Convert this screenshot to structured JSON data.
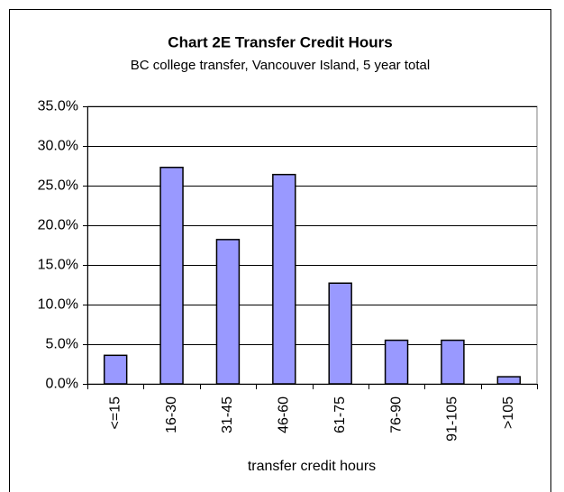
{
  "chart_data": {
    "type": "bar",
    "title": "Chart 2E  Transfer Credit Hours",
    "subtitle": "BC college transfer, Vancouver Island, 5 year total",
    "x_label": "transfer credit hours",
    "categories": [
      "<=15",
      "16-30",
      "31-45",
      "46-60",
      "61-75",
      "76-90",
      "91-105",
      ">105"
    ],
    "values": [
      3.6,
      27.3,
      18.2,
      26.4,
      12.7,
      5.5,
      5.5,
      0.9
    ],
    "color": "#9999ff",
    "ylim": [
      0,
      35
    ],
    "yticks": [
      {
        "value": 0,
        "label": "0.0%"
      },
      {
        "value": 5,
        "label": "5.0%"
      },
      {
        "value": 10,
        "label": "10.0%"
      },
      {
        "value": 15,
        "label": "15.0%"
      },
      {
        "value": 20,
        "label": "20.0%"
      },
      {
        "value": 25,
        "label": "25.0%"
      },
      {
        "value": 30,
        "label": "30.0%"
      },
      {
        "value": 35,
        "label": "35.0%"
      }
    ],
    "grid": true
  }
}
